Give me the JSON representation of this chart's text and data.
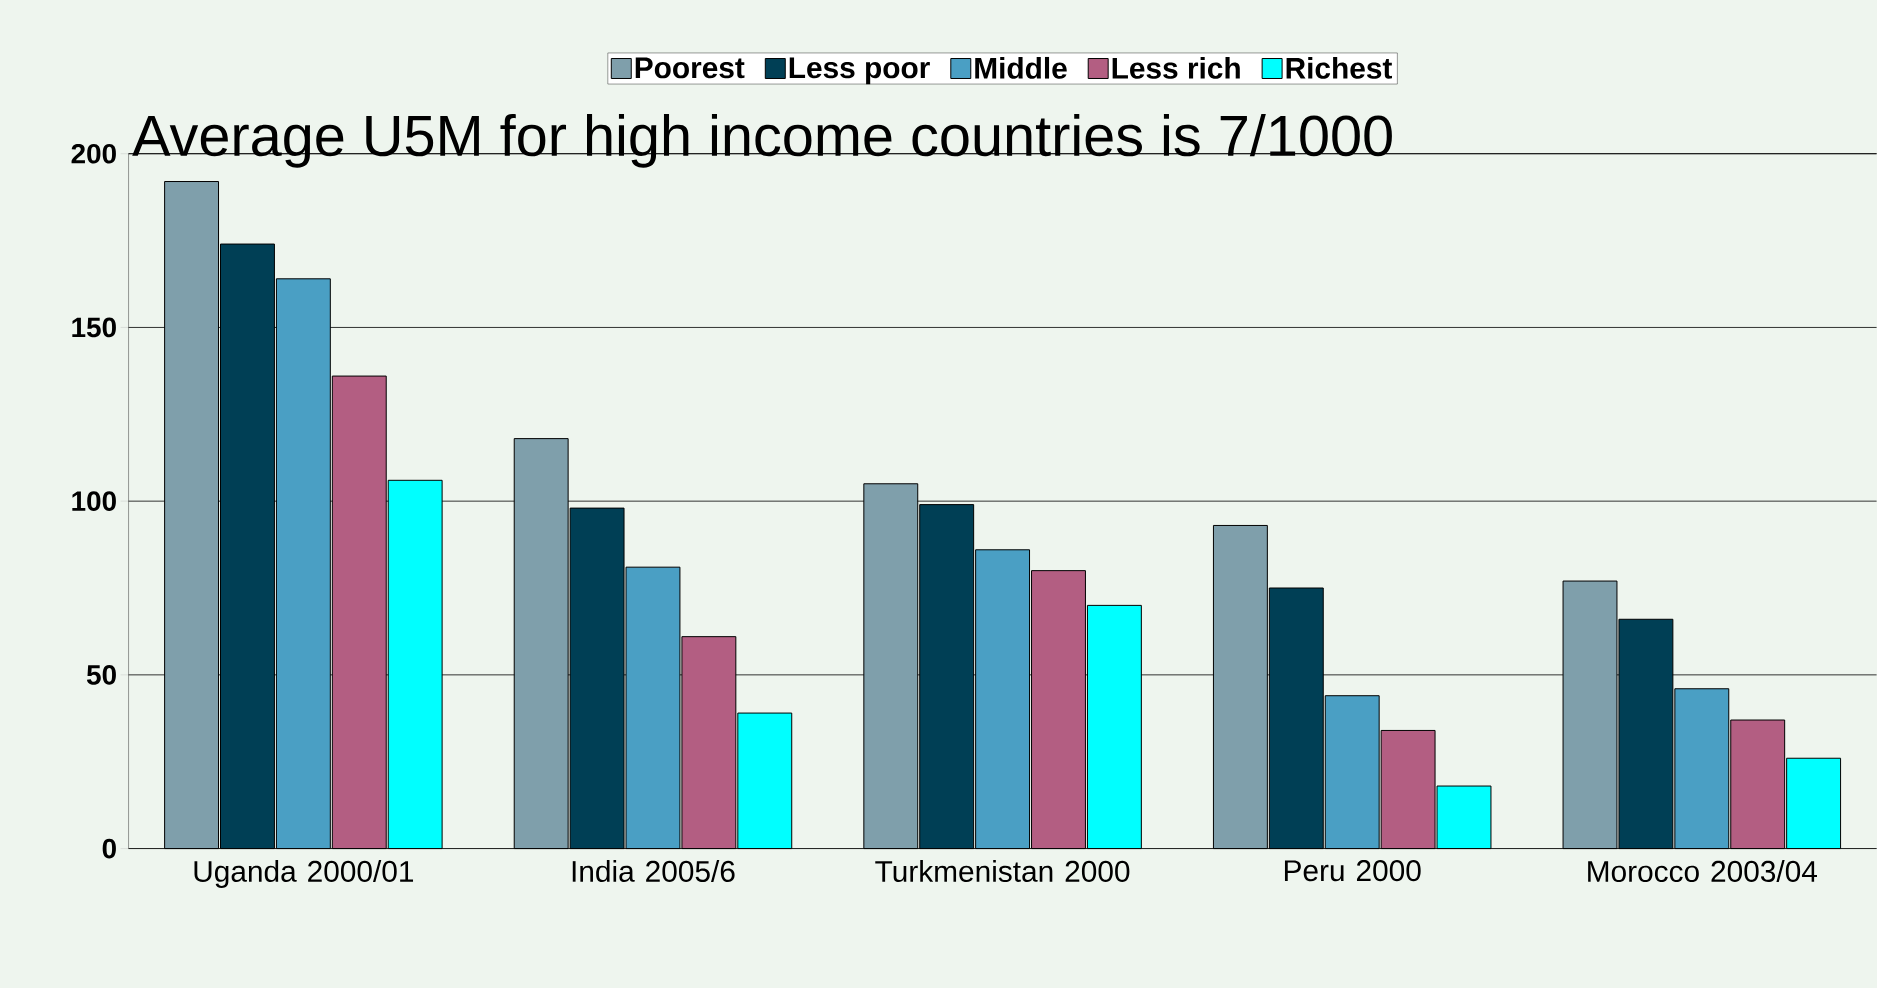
{
  "chart_data": {
    "type": "bar",
    "title": "Average U5M for high income countries is 7/1000",
    "categories": [
      "Uganda 2000/01",
      "India 2005/6",
      "Turkmenistan 2000",
      "Peru 2000",
      "Morocco 2003/04"
    ],
    "series": [
      {
        "name": "Poorest",
        "color": "#7f9fab",
        "values": [
          192,
          118,
          105,
          93,
          77
        ]
      },
      {
        "name": "Less poor",
        "color": "#003f55",
        "values": [
          174,
          98,
          99,
          75,
          66
        ]
      },
      {
        "name": "Middle",
        "color": "#4a9fc4",
        "values": [
          164,
          81,
          86,
          44,
          46
        ]
      },
      {
        "name": "Less rich",
        "color": "#b35e82",
        "values": [
          136,
          61,
          80,
          34,
          37
        ]
      },
      {
        "name": "Richest",
        "color": "#00ffff",
        "values": [
          106,
          39,
          70,
          18,
          26
        ]
      }
    ],
    "ylim": [
      0,
      200
    ],
    "yticks": [
      0,
      50,
      100,
      150,
      200
    ],
    "grid": "y",
    "legend": "top"
  }
}
